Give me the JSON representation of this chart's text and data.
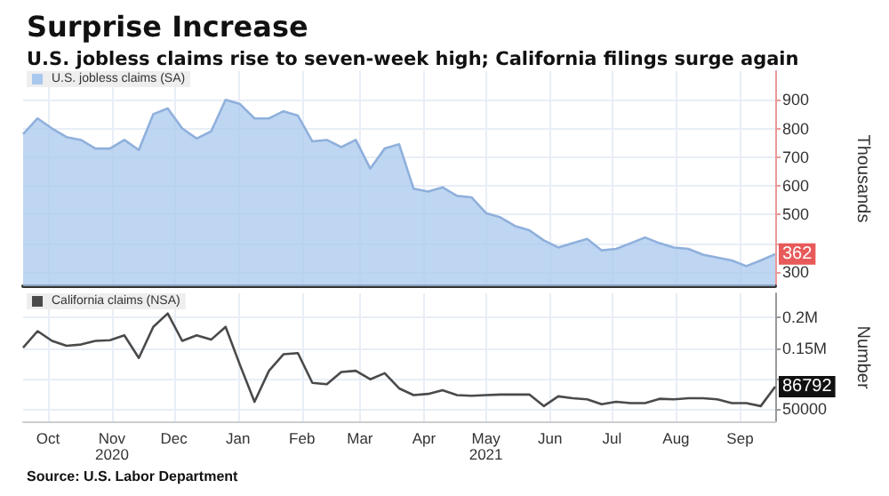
{
  "chart_data": [
    {
      "type": "area",
      "title": "Surprise Increase",
      "subtitle": "U.S. jobless claims rise to seven-week high; California filings surge again",
      "ylabel": "Thousands",
      "x": [
        "2020-09-19",
        "2020-09-26",
        "2020-10-03",
        "2020-10-10",
        "2020-10-17",
        "2020-10-24",
        "2020-10-31",
        "2020-11-07",
        "2020-11-14",
        "2020-11-21",
        "2020-11-28",
        "2020-12-05",
        "2020-12-12",
        "2020-12-19",
        "2020-12-26",
        "2021-01-02",
        "2021-01-09",
        "2021-01-16",
        "2021-01-23",
        "2021-01-30",
        "2021-02-06",
        "2021-02-13",
        "2021-02-20",
        "2021-02-27",
        "2021-03-06",
        "2021-03-13",
        "2021-03-20",
        "2021-03-27",
        "2021-04-03",
        "2021-04-10",
        "2021-04-17",
        "2021-04-24",
        "2021-05-01",
        "2021-05-08",
        "2021-05-15",
        "2021-05-22",
        "2021-05-29",
        "2021-06-05",
        "2021-06-12",
        "2021-06-19",
        "2021-06-26",
        "2021-07-03",
        "2021-07-10",
        "2021-07-17",
        "2021-07-24",
        "2021-07-31",
        "2021-08-07",
        "2021-08-14",
        "2021-08-21",
        "2021-08-28",
        "2021-09-04",
        "2021-09-11",
        "2021-09-18"
      ],
      "series": [
        {
          "name": "U.S. jobless claims (SA)",
          "color": "#a9c8ee",
          "values": [
            780,
            835,
            800,
            770,
            760,
            730,
            730,
            760,
            725,
            850,
            870,
            800,
            765,
            790,
            900,
            885,
            835,
            835,
            860,
            845,
            755,
            760,
            735,
            760,
            660,
            730,
            745,
            590,
            580,
            595,
            565,
            560,
            505,
            490,
            460,
            445,
            410,
            385,
            400,
            415,
            375,
            380,
            400,
            420,
            400,
            385,
            380,
            360,
            350,
            340,
            320,
            340,
            362
          ],
          "value_labels": [
            null,
            null,
            null,
            null,
            null,
            null,
            null,
            null,
            null,
            null,
            null,
            null,
            null,
            null,
            null,
            null,
            null,
            null,
            null,
            null,
            null,
            null,
            null,
            null,
            null,
            null,
            null,
            null,
            null,
            null,
            null,
            null,
            null,
            null,
            null,
            null,
            null,
            null,
            null,
            null,
            null,
            null,
            null,
            null,
            null,
            null,
            null,
            null,
            null,
            null,
            null,
            null,
            "362"
          ]
        }
      ],
      "xlim": [
        "2020-09-19",
        "2021-09-18"
      ],
      "xticks": [
        {
          "value": "2020-10-01",
          "label": null
        },
        {
          "value": "2020-11-01",
          "label": null
        },
        {
          "value": "2020-12-01",
          "label": null
        },
        {
          "value": "2021-01-01",
          "label": null
        },
        {
          "value": "2021-02-01",
          "label": null
        },
        {
          "value": "2021-03-01",
          "label": null
        },
        {
          "value": "2021-04-01",
          "label": null
        },
        {
          "value": "2021-05-01",
          "label": null
        },
        {
          "value": "2021-06-01",
          "label": null
        },
        {
          "value": "2021-07-01",
          "label": null
        },
        {
          "value": "2021-08-01",
          "label": null
        },
        {
          "value": "2021-09-01",
          "label": null
        }
      ],
      "ylim": [
        250,
        1000
      ],
      "yticks": [
        300,
        {
          "value": 400,
          "label": null
        },
        500,
        600,
        700,
        800,
        900
      ],
      "grid": true,
      "legend": "top left",
      "tick_labels": "y"
    },
    {
      "type": "line",
      "ylabel": "Number",
      "annotations": [
        "Source: U.S. Labor Department"
      ],
      "x": [
        "2020-09-19",
        "2020-09-26",
        "2020-10-03",
        "2020-10-10",
        "2020-10-17",
        "2020-10-24",
        "2020-10-31",
        "2020-11-07",
        "2020-11-14",
        "2020-11-21",
        "2020-11-28",
        "2020-12-05",
        "2020-12-12",
        "2020-12-19",
        "2020-12-26",
        "2021-01-02",
        "2021-01-09",
        "2021-01-16",
        "2021-01-23",
        "2021-01-30",
        "2021-02-06",
        "2021-02-13",
        "2021-02-20",
        "2021-02-27",
        "2021-03-06",
        "2021-03-13",
        "2021-03-20",
        "2021-03-27",
        "2021-04-03",
        "2021-04-10",
        "2021-04-17",
        "2021-04-24",
        "2021-05-01",
        "2021-05-08",
        "2021-05-15",
        "2021-05-22",
        "2021-05-29",
        "2021-06-05",
        "2021-06-12",
        "2021-06-19",
        "2021-06-26",
        "2021-07-03",
        "2021-07-10",
        "2021-07-17",
        "2021-07-24",
        "2021-07-31",
        "2021-08-07",
        "2021-08-14",
        "2021-08-21",
        "2021-08-28",
        "2021-09-04",
        "2021-09-11",
        "2021-09-18"
      ],
      "series": [
        {
          "name": "California claims (NSA)",
          "color": "#4a4a4a",
          "values": [
            151000,
            178000,
            162000,
            154000,
            156000,
            162000,
            163000,
            171000,
            134000,
            185000,
            207000,
            162000,
            171000,
            164000,
            185000,
            122000,
            62000,
            113000,
            140000,
            142000,
            93000,
            91000,
            111000,
            113000,
            99000,
            109000,
            84000,
            73000,
            75000,
            81000,
            73000,
            72000,
            73000,
            74000,
            74000,
            74000,
            55000,
            71000,
            68000,
            66000,
            58000,
            62000,
            60000,
            60000,
            67000,
            66000,
            68000,
            68000,
            66000,
            60000,
            60000,
            55000,
            86792
          ],
          "value_labels": [
            null,
            null,
            null,
            null,
            null,
            null,
            null,
            null,
            null,
            null,
            null,
            null,
            null,
            null,
            null,
            null,
            null,
            null,
            null,
            null,
            null,
            null,
            null,
            null,
            null,
            null,
            null,
            null,
            null,
            null,
            null,
            null,
            null,
            null,
            null,
            null,
            null,
            null,
            null,
            null,
            null,
            null,
            null,
            null,
            null,
            null,
            null,
            null,
            null,
            null,
            null,
            null,
            "86792"
          ]
        }
      ],
      "xlim": [
        "2020-09-19",
        "2021-09-18"
      ],
      "xticks": [
        {
          "value": "2020-10-01",
          "label": "Oct"
        },
        {
          "value": "2020-11-01",
          "label": "Nov\n2020"
        },
        {
          "value": "2020-12-01",
          "label": "Dec"
        },
        {
          "value": "2021-01-01",
          "label": "Jan"
        },
        {
          "value": "2021-02-01",
          "label": "Feb"
        },
        {
          "value": "2021-03-01",
          "label": "Mar"
        },
        {
          "value": "2021-04-01",
          "label": "Apr"
        },
        {
          "value": "2021-05-01",
          "label": "May\n2021"
        },
        {
          "value": "2021-06-01",
          "label": "Jun"
        },
        {
          "value": "2021-07-01",
          "label": "Jul"
        },
        {
          "value": "2021-08-01",
          "label": "Aug"
        },
        {
          "value": "2021-09-01",
          "label": "Sep"
        }
      ],
      "ylim": [
        30000,
        240000
      ],
      "yticks": [
        50000,
        {
          "value": 100000,
          "label": null
        },
        {
          "value": 150000,
          "label": "0.15M"
        },
        {
          "value": 200000,
          "label": "0.2M"
        }
      ],
      "grid": true,
      "legend": "top left"
    }
  ]
}
